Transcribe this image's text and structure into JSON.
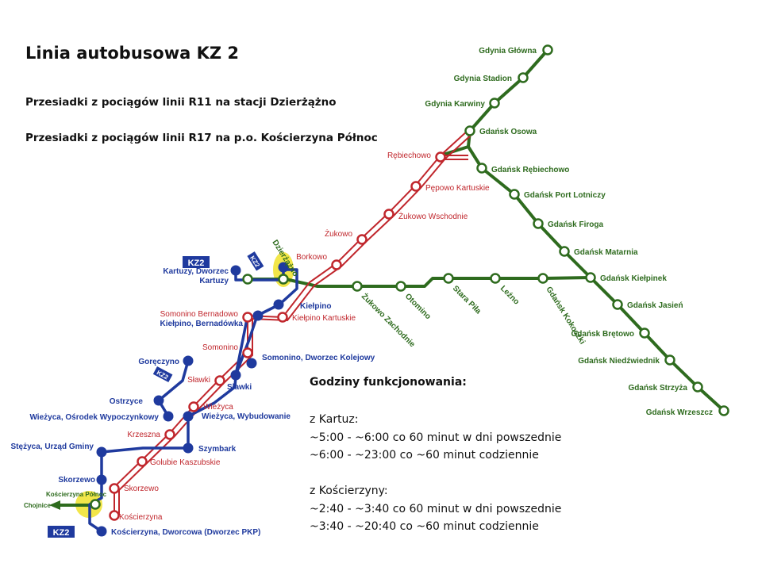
{
  "title": "Linia autobusowa KZ 2",
  "transfer_notes": [
    "Przesiadki z pociągów linii R11 na stacji Dzierżążno",
    "Przesiadki z pociągów linii R17 na p.o. Kościerzyna Północ"
  ],
  "schedule": {
    "heading": "Godziny funkcjonowania:",
    "from_kartuzy": {
      "label": "z Kartuz:",
      "lines": [
        "~5:00 - ~6:00 co 60 minut w dni powszednie",
        "~6:00 - ~23:00 co ~60 minut codziennie"
      ]
    },
    "from_koscierzyna": {
      "label": "z Kościerzyny:",
      "lines": [
        "~2:40 - ~3:40 co 60 minut w dni powszednie",
        "~3:40 - ~20:40 co ~60 minut codziennie"
      ]
    }
  },
  "colors": {
    "green_line": "#2e6b1e",
    "red_line": "#c0262c",
    "blue_line": "#1f3a9e",
    "transfer_highlight": "#f2e64a"
  },
  "green_stations": {
    "gdynia_glowna": "Gdynia Główna",
    "gdynia_stadion": "Gdynia Stadion",
    "gdynia_karwiny": "Gdynia Karwiny",
    "gdansk_osowa": "Gdańsk Osowa",
    "gdansk_rebiechowo": "Gdańsk Rębiechowo",
    "gdansk_port_lotniczy": "Gdańsk Port Lotniczy",
    "gdansk_firoga": "Gdańsk Firoga",
    "gdansk_matarnia": "Gdańsk Matarnia",
    "gdansk_kielpinek": "Gdańsk Kiełpinek",
    "gdansk_jasien": "Gdańsk Jasień",
    "gdansk_bretowo": "Gdańsk Brętowo",
    "gdansk_niedzwiednik": "Gdańsk Niedźwiednik",
    "gdansk_strzyza": "Gdańsk Strzyża",
    "gdansk_wrzeszcz": "Gdańsk Wrzeszcz",
    "gdansk_kokoszki": "Gdańsk Kokoszki",
    "lezno": "Leźno",
    "stara_pila": "Stara Piła",
    "otomino": "Otomino",
    "zukowo_zachodnie": "Żukowo Zachodnie",
    "kartuzy": "Kartuzy",
    "dzierzazno": "Dzierżążno",
    "koscierzyna_polnoc": "Kościerzyna Północ",
    "chojnice": "Chojnice"
  },
  "red_stations": {
    "rebiechowo": "Rębiechowo",
    "pepowo_kartuskie": "Pępowo Kartuskie",
    "zukowo_wschodnie": "Żukowo Wschodnie",
    "zukowo": "Żukowo",
    "borkowo": "Borkowo",
    "kielpino_kartuskie": "Kiełpino Kartuskie",
    "somonino_bernadowo": "Somonino Bernadowo",
    "somonino": "Somonino",
    "slawki": "Sławki",
    "wiezyca": "Wieżyca",
    "krzeszna": "Krzeszna",
    "golubie_kaszubskie": "Golubie Kaszubskie",
    "skorzewo": "Skorzewo",
    "koscierzyna": "Kościerzyna"
  },
  "blue_stations": {
    "kartuzy_dworzec": "Kartuzy, Dworzec",
    "kielpino": "Kiełpino",
    "kielpino_bernadowka": "Kiełpino, Bernadówka",
    "somonino_dworzec": "Somonino, Dworzec Kolejowy",
    "goreczyno": "Goręczyno",
    "slawki": "Sławki",
    "ostrzyce": "Ostrzyce",
    "wiezyca_osrodek": "Wieżyca, Ośrodek Wypoczynkowy",
    "wiezyca_wybudowanie": "Wieżyca, Wybudowanie",
    "szymbark": "Szymbark",
    "stezyca": "Stężyca, Urząd Gminy",
    "skorzewo": "Skorzewo",
    "koscierzyna_dworcowa": "Kościerzyna, Dworcowa (Dworzec PKP)"
  },
  "badges": {
    "kz2": "KZ2"
  }
}
